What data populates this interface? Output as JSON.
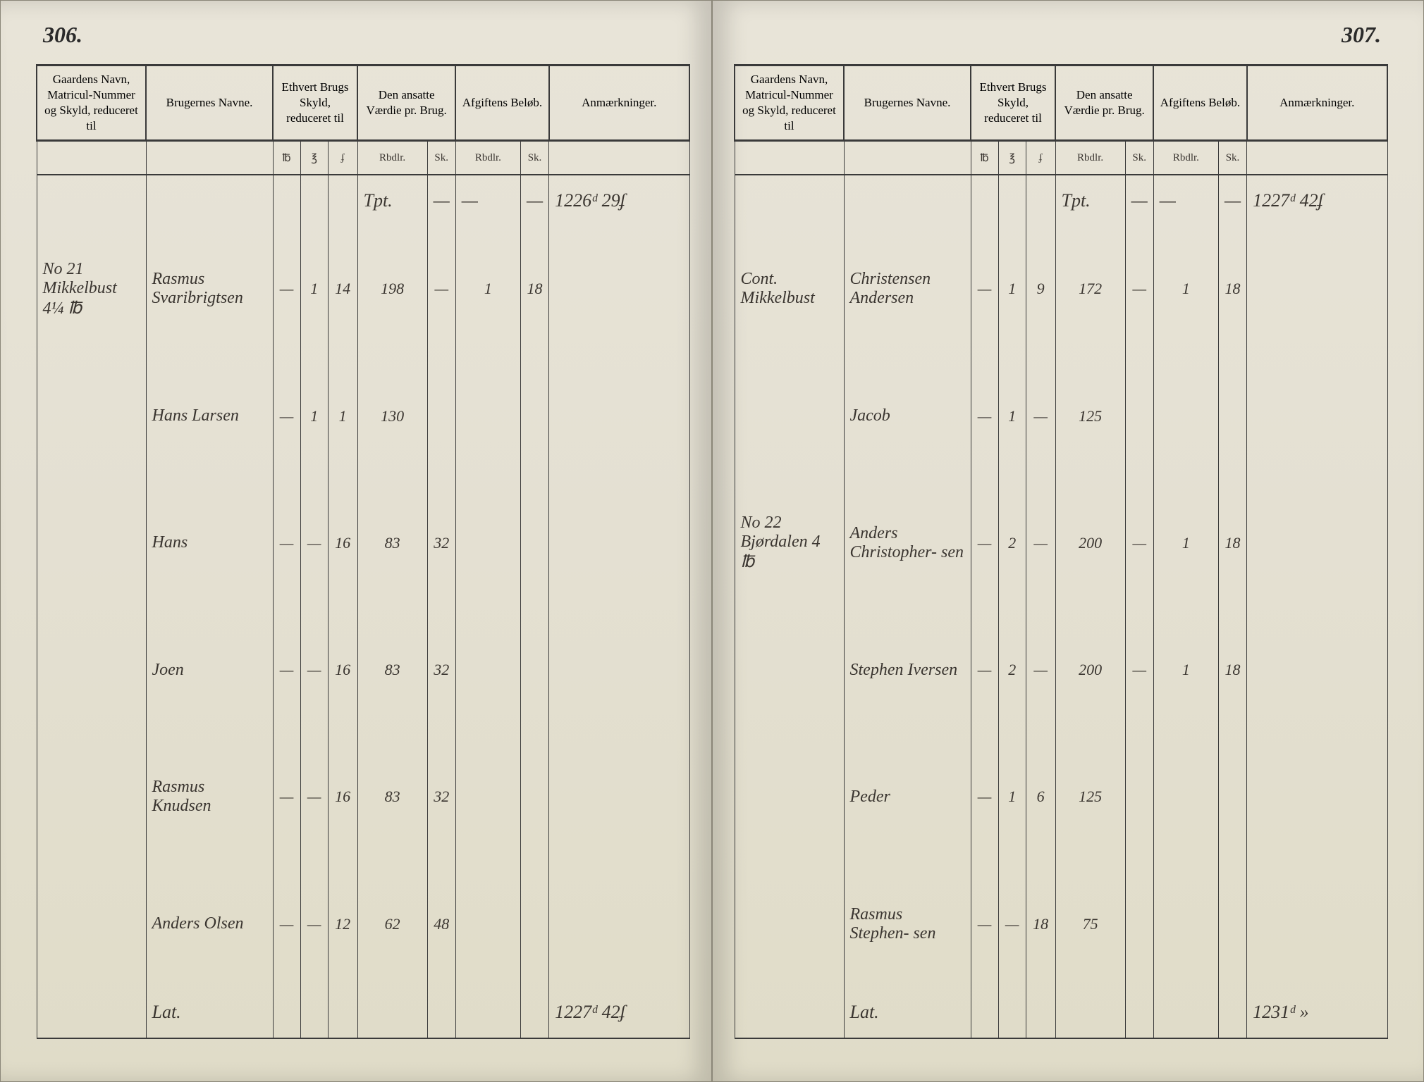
{
  "left": {
    "page_number": "306.",
    "headers": {
      "gaardens": "Gaardens Navn,\nMatricul-Nummer og\nSkyld, reduceret til",
      "brugernes": "Brugernes Navne.",
      "skyld": "Ethvert Brugs\nSkyld, reduceret\ntil",
      "vaerdie": "Den ansatte\nVærdie\npr. Brug.",
      "afgift": "Afgiftens\nBeløb.",
      "anm": "Anmærkninger."
    },
    "subheaders": {
      "s1": "℔",
      "s2": "℥",
      "s3": "ʄ",
      "v1": "Rbdlr.",
      "v2": "Sk.",
      "a1": "Rbdlr.",
      "a2": "Sk."
    },
    "transport_top": {
      "vaerdie": "Tpt.",
      "anm": "1226ᵈ 29ʄ"
    },
    "rows": [
      {
        "gaardens": "No 21 Mikkelbust\n4¼ ℔",
        "bruger": "Rasmus Svaribrigtsen",
        "s1": "—",
        "s2": "1",
        "s3": "14",
        "v1": "198",
        "v2": "—",
        "a1": "1",
        "a2": "18"
      },
      {
        "gaardens": "",
        "bruger": "Hans Larsen",
        "s1": "—",
        "s2": "1",
        "s3": "1",
        "v1": "130",
        "v2": "",
        "a1": "",
        "a2": ""
      },
      {
        "gaardens": "",
        "bruger": "Hans",
        "s1": "—",
        "s2": "—",
        "s3": "16",
        "v1": "83",
        "v2": "32",
        "a1": "",
        "a2": ""
      },
      {
        "gaardens": "",
        "bruger": "Joen",
        "s1": "—",
        "s2": "—",
        "s3": "16",
        "v1": "83",
        "v2": "32",
        "a1": "",
        "a2": ""
      },
      {
        "gaardens": "",
        "bruger": "Rasmus Knudsen",
        "s1": "—",
        "s2": "—",
        "s3": "16",
        "v1": "83",
        "v2": "32",
        "a1": "",
        "a2": ""
      },
      {
        "gaardens": "",
        "bruger": "Anders Olsen",
        "s1": "—",
        "s2": "—",
        "s3": "12",
        "v1": "62",
        "v2": "48",
        "a1": "",
        "a2": ""
      }
    ],
    "transport_bottom": {
      "label": "Lat.",
      "anm": "1227ᵈ 42ʄ"
    }
  },
  "right": {
    "page_number": "307.",
    "headers": {
      "gaardens": "Gaardens Navn,\nMatricul-Nummer og\nSkyld, reduceret til",
      "brugernes": "Brugernes Navne.",
      "skyld": "Ethvert Brugs\nSkyld, reduceret\ntil",
      "vaerdie": "Den ansatte\nVærdie\npr. Brug.",
      "afgift": "Afgiftens\nBeløb.",
      "anm": "Anmærkninger."
    },
    "subheaders": {
      "s1": "℔",
      "s2": "℥",
      "s3": "ʄ",
      "v1": "Rbdlr.",
      "v2": "Sk.",
      "a1": "Rbdlr.",
      "a2": "Sk."
    },
    "transport_top": {
      "vaerdie": "Tpt.",
      "anm": "1227ᵈ 42ʄ"
    },
    "rows": [
      {
        "gaardens": "Cont. Mikkelbust",
        "bruger": "Christensen Andersen",
        "s1": "—",
        "s2": "1",
        "s3": "9",
        "v1": "172",
        "v2": "—",
        "a1": "1",
        "a2": "18"
      },
      {
        "gaardens": "",
        "bruger": "Jacob",
        "s1": "—",
        "s2": "1",
        "s3": "—",
        "v1": "125",
        "v2": "",
        "a1": "",
        "a2": ""
      },
      {
        "gaardens": "No 22 Bjørdalen\n4 ℔",
        "bruger": "Anders Christopher-\nsen",
        "s1": "—",
        "s2": "2",
        "s3": "—",
        "v1": "200",
        "v2": "—",
        "a1": "1",
        "a2": "18"
      },
      {
        "gaardens": "",
        "bruger": "Stephen Iversen",
        "s1": "—",
        "s2": "2",
        "s3": "—",
        "v1": "200",
        "v2": "—",
        "a1": "1",
        "a2": "18"
      },
      {
        "gaardens": "",
        "bruger": "Peder",
        "s1": "—",
        "s2": "1",
        "s3": "6",
        "v1": "125",
        "v2": "",
        "a1": "",
        "a2": ""
      },
      {
        "gaardens": "",
        "bruger": "Rasmus Stephen-\nsen",
        "s1": "—",
        "s2": "—",
        "s3": "18",
        "v1": "75",
        "v2": "",
        "a1": "",
        "a2": ""
      }
    ],
    "transport_bottom": {
      "label": "Lat.",
      "anm": "1231ᵈ »"
    }
  },
  "colors": {
    "paper": "#e4e0d2",
    "ink": "#2a2a2a",
    "script": "#3a3530",
    "rule": "#3a3a3a",
    "background": "#1a1a1a"
  },
  "typography": {
    "header_fontsize": 17,
    "script_fontsize": 24,
    "pagenum_fontsize": 32
  }
}
